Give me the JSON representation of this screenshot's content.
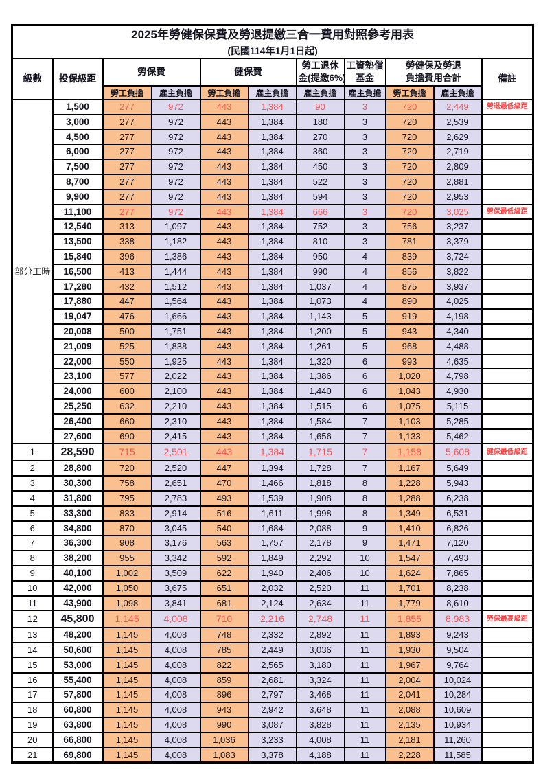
{
  "title": "2025年勞健保保費及勞退提繳三合一費用對照參考用表",
  "subtitle": "(民國114年1月1日起)",
  "header": {
    "level": "級數",
    "bracket": "投保級距",
    "labor": "勞保費",
    "health": "健保費",
    "pension_line1": "勞工退休",
    "pension_line2": "金(提繳6%)",
    "wage_line1": "工資墊償",
    "wage_line2": "基金",
    "total_line1": "勞健保及勞退",
    "total_line2": "負擔費用合計",
    "note": "備註",
    "employee": "勞工負擔",
    "employer": "雇主負擔"
  },
  "part_time_label": "部分工時",
  "colors": {
    "employee_fill": "#FBC08F",
    "employer_fill": "#DDDAEF",
    "highlight_red": "#F25454",
    "note_red": "#FF4242",
    "border_black": "#000000"
  },
  "rows": [
    {
      "level": null,
      "bracket": "1,500",
      "v": [
        "277",
        "972",
        "443",
        "1,384",
        "90",
        "3",
        "720",
        "2,449"
      ],
      "note": "勞退最低級距",
      "red": true,
      "big": false
    },
    {
      "level": null,
      "bracket": "3,000",
      "v": [
        "277",
        "972",
        "443",
        "1,384",
        "180",
        "3",
        "720",
        "2,539"
      ],
      "note": "",
      "red": false,
      "big": false
    },
    {
      "level": null,
      "bracket": "4,500",
      "v": [
        "277",
        "972",
        "443",
        "1,384",
        "270",
        "3",
        "720",
        "2,629"
      ],
      "note": "",
      "red": false,
      "big": false
    },
    {
      "level": null,
      "bracket": "6,000",
      "v": [
        "277",
        "972",
        "443",
        "1,384",
        "360",
        "3",
        "720",
        "2,719"
      ],
      "note": "",
      "red": false,
      "big": false
    },
    {
      "level": null,
      "bracket": "7,500",
      "v": [
        "277",
        "972",
        "443",
        "1,384",
        "450",
        "3",
        "720",
        "2,809"
      ],
      "note": "",
      "red": false,
      "big": false
    },
    {
      "level": null,
      "bracket": "8,700",
      "v": [
        "277",
        "972",
        "443",
        "1,384",
        "522",
        "3",
        "720",
        "2,881"
      ],
      "note": "",
      "red": false,
      "big": false
    },
    {
      "level": null,
      "bracket": "9,900",
      "v": [
        "277",
        "972",
        "443",
        "1,384",
        "594",
        "3",
        "720",
        "2,953"
      ],
      "note": "",
      "red": false,
      "big": false
    },
    {
      "level": null,
      "bracket": "11,100",
      "v": [
        "277",
        "972",
        "443",
        "1,384",
        "666",
        "3",
        "720",
        "3,025"
      ],
      "note": "勞保最低級距",
      "red": true,
      "big": false
    },
    {
      "level": null,
      "bracket": "12,540",
      "v": [
        "313",
        "1,097",
        "443",
        "1,384",
        "752",
        "3",
        "756",
        "3,237"
      ],
      "note": "",
      "red": false,
      "big": false
    },
    {
      "level": null,
      "bracket": "13,500",
      "v": [
        "338",
        "1,182",
        "443",
        "1,384",
        "810",
        "3",
        "781",
        "3,379"
      ],
      "note": "",
      "red": false,
      "big": false
    },
    {
      "level": null,
      "bracket": "15,840",
      "v": [
        "396",
        "1,386",
        "443",
        "1,384",
        "950",
        "4",
        "839",
        "3,724"
      ],
      "note": "",
      "red": false,
      "big": false
    },
    {
      "level": null,
      "bracket": "16,500",
      "v": [
        "413",
        "1,444",
        "443",
        "1,384",
        "990",
        "4",
        "856",
        "3,822"
      ],
      "note": "",
      "red": false,
      "big": false
    },
    {
      "level": null,
      "bracket": "17,280",
      "v": [
        "432",
        "1,512",
        "443",
        "1,384",
        "1,037",
        "4",
        "875",
        "3,937"
      ],
      "note": "",
      "red": false,
      "big": false
    },
    {
      "level": null,
      "bracket": "17,880",
      "v": [
        "447",
        "1,564",
        "443",
        "1,384",
        "1,073",
        "4",
        "890",
        "4,025"
      ],
      "note": "",
      "red": false,
      "big": false
    },
    {
      "level": null,
      "bracket": "19,047",
      "v": [
        "476",
        "1,666",
        "443",
        "1,384",
        "1,143",
        "5",
        "919",
        "4,198"
      ],
      "note": "",
      "red": false,
      "big": false
    },
    {
      "level": null,
      "bracket": "20,008",
      "v": [
        "500",
        "1,751",
        "443",
        "1,384",
        "1,200",
        "5",
        "943",
        "4,340"
      ],
      "note": "",
      "red": false,
      "big": false
    },
    {
      "level": null,
      "bracket": "21,009",
      "v": [
        "525",
        "1,838",
        "443",
        "1,384",
        "1,261",
        "5",
        "968",
        "4,488"
      ],
      "note": "",
      "red": false,
      "big": false
    },
    {
      "level": null,
      "bracket": "22,000",
      "v": [
        "550",
        "1,925",
        "443",
        "1,384",
        "1,320",
        "6",
        "993",
        "4,635"
      ],
      "note": "",
      "red": false,
      "big": false
    },
    {
      "level": null,
      "bracket": "23,100",
      "v": [
        "577",
        "2,022",
        "443",
        "1,384",
        "1,386",
        "6",
        "1,020",
        "4,798"
      ],
      "note": "",
      "red": false,
      "big": false
    },
    {
      "level": null,
      "bracket": "24,000",
      "v": [
        "600",
        "2,100",
        "443",
        "1,384",
        "1,440",
        "6",
        "1,043",
        "4,930"
      ],
      "note": "",
      "red": false,
      "big": false
    },
    {
      "level": null,
      "bracket": "25,250",
      "v": [
        "632",
        "2,210",
        "443",
        "1,384",
        "1,515",
        "6",
        "1,075",
        "5,115"
      ],
      "note": "",
      "red": false,
      "big": false
    },
    {
      "level": null,
      "bracket": "26,400",
      "v": [
        "660",
        "2,310",
        "443",
        "1,384",
        "1,584",
        "7",
        "1,103",
        "5,285"
      ],
      "note": "",
      "red": false,
      "big": false
    },
    {
      "level": null,
      "bracket": "27,600",
      "v": [
        "690",
        "2,415",
        "443",
        "1,384",
        "1,656",
        "7",
        "1,133",
        "5,462"
      ],
      "note": "",
      "red": false,
      "big": false
    },
    {
      "level": "1",
      "bracket": "28,590",
      "v": [
        "715",
        "2,501",
        "443",
        "1,384",
        "1,715",
        "7",
        "1,158",
        "5,608"
      ],
      "note": "健保最低級距",
      "red": true,
      "big": true
    },
    {
      "level": "2",
      "bracket": "28,800",
      "v": [
        "720",
        "2,520",
        "447",
        "1,394",
        "1,728",
        "7",
        "1,167",
        "5,649"
      ],
      "note": "",
      "red": false,
      "big": false
    },
    {
      "level": "3",
      "bracket": "30,300",
      "v": [
        "758",
        "2,651",
        "470",
        "1,466",
        "1,818",
        "8",
        "1,228",
        "5,943"
      ],
      "note": "",
      "red": false,
      "big": false
    },
    {
      "level": "4",
      "bracket": "31,800",
      "v": [
        "795",
        "2,783",
        "493",
        "1,539",
        "1,908",
        "8",
        "1,288",
        "6,238"
      ],
      "note": "",
      "red": false,
      "big": false
    },
    {
      "level": "5",
      "bracket": "33,300",
      "v": [
        "833",
        "2,914",
        "516",
        "1,611",
        "1,998",
        "8",
        "1,349",
        "6,531"
      ],
      "note": "",
      "red": false,
      "big": false
    },
    {
      "level": "6",
      "bracket": "34,800",
      "v": [
        "870",
        "3,045",
        "540",
        "1,684",
        "2,088",
        "9",
        "1,410",
        "6,826"
      ],
      "note": "",
      "red": false,
      "big": false
    },
    {
      "level": "7",
      "bracket": "36,300",
      "v": [
        "908",
        "3,176",
        "563",
        "1,757",
        "2,178",
        "9",
        "1,471",
        "7,120"
      ],
      "note": "",
      "red": false,
      "big": false
    },
    {
      "level": "8",
      "bracket": "38,200",
      "v": [
        "955",
        "3,342",
        "592",
        "1,849",
        "2,292",
        "10",
        "1,547",
        "7,493"
      ],
      "note": "",
      "red": false,
      "big": false
    },
    {
      "level": "9",
      "bracket": "40,100",
      "v": [
        "1,002",
        "3,509",
        "622",
        "1,940",
        "2,406",
        "10",
        "1,624",
        "7,865"
      ],
      "note": "",
      "red": false,
      "big": false
    },
    {
      "level": "10",
      "bracket": "42,000",
      "v": [
        "1,050",
        "3,675",
        "651",
        "2,032",
        "2,520",
        "11",
        "1,701",
        "8,238"
      ],
      "note": "",
      "red": false,
      "big": false
    },
    {
      "level": "11",
      "bracket": "43,900",
      "v": [
        "1,098",
        "3,841",
        "681",
        "2,124",
        "2,634",
        "11",
        "1,779",
        "8,610"
      ],
      "note": "",
      "red": false,
      "big": false
    },
    {
      "level": "12",
      "bracket": "45,800",
      "v": [
        "1,145",
        "4,008",
        "710",
        "2,216",
        "2,748",
        "11",
        "1,855",
        "8,983"
      ],
      "note": "勞保最高級距",
      "red": true,
      "big": true
    },
    {
      "level": "13",
      "bracket": "48,200",
      "v": [
        "1,145",
        "4,008",
        "748",
        "2,332",
        "2,892",
        "11",
        "1,893",
        "9,243"
      ],
      "note": "",
      "red": false,
      "big": false
    },
    {
      "level": "14",
      "bracket": "50,600",
      "v": [
        "1,145",
        "4,008",
        "785",
        "2,449",
        "3,036",
        "11",
        "1,930",
        "9,504"
      ],
      "note": "",
      "red": false,
      "big": false
    },
    {
      "level": "15",
      "bracket": "53,000",
      "v": [
        "1,145",
        "4,008",
        "822",
        "2,565",
        "3,180",
        "11",
        "1,967",
        "9,764"
      ],
      "note": "",
      "red": false,
      "big": false
    },
    {
      "level": "16",
      "bracket": "55,400",
      "v": [
        "1,145",
        "4,008",
        "859",
        "2,681",
        "3,324",
        "11",
        "2,004",
        "10,024"
      ],
      "note": "",
      "red": false,
      "big": false
    },
    {
      "level": "17",
      "bracket": "57,800",
      "v": [
        "1,145",
        "4,008",
        "896",
        "2,797",
        "3,468",
        "11",
        "2,041",
        "10,284"
      ],
      "note": "",
      "red": false,
      "big": false
    },
    {
      "level": "18",
      "bracket": "60,800",
      "v": [
        "1,145",
        "4,008",
        "943",
        "2,942",
        "3,648",
        "11",
        "2,088",
        "10,609"
      ],
      "note": "",
      "red": false,
      "big": false
    },
    {
      "level": "19",
      "bracket": "63,800",
      "v": [
        "1,145",
        "4,008",
        "990",
        "3,087",
        "3,828",
        "11",
        "2,135",
        "10,934"
      ],
      "note": "",
      "red": false,
      "big": false
    },
    {
      "level": "20",
      "bracket": "66,800",
      "v": [
        "1,145",
        "4,008",
        "1,036",
        "3,233",
        "4,008",
        "11",
        "2,181",
        "11,260"
      ],
      "note": "",
      "red": false,
      "big": false
    },
    {
      "level": "21",
      "bracket": "69,800",
      "v": [
        "1,145",
        "4,008",
        "1,083",
        "3,378",
        "4,188",
        "11",
        "2,228",
        "11,585"
      ],
      "note": "",
      "red": false,
      "big": false
    }
  ]
}
